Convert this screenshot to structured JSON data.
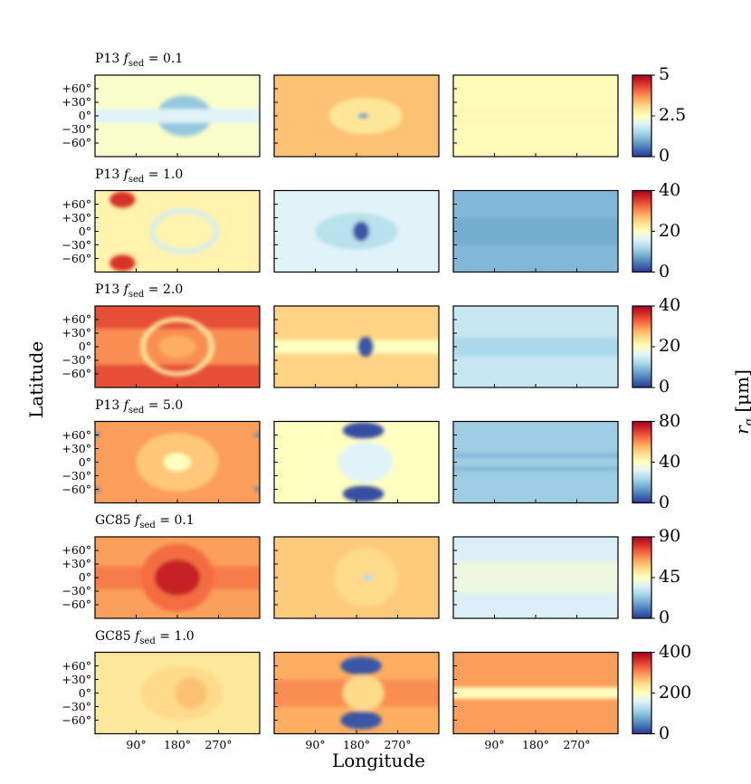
{
  "chart_data": {
    "type": "heatmap",
    "xlabel": "Longitude",
    "ylabel": "Latitude",
    "colorbar_label_base": "r",
    "colorbar_label_sub": "g",
    "colorbar_label_unit": "[µm]",
    "x_ticks": [
      "90°",
      "180°",
      "270°"
    ],
    "y_ticks": [
      "+60°",
      "+30°",
      "0°",
      "−30°",
      "−60°"
    ],
    "x_tick_values": [
      90,
      180,
      270
    ],
    "y_tick_values": [
      60,
      30,
      0,
      -30,
      -60
    ],
    "xlim": [
      0,
      360
    ],
    "ylim": [
      -90,
      90
    ],
    "colormap": [
      "#313695",
      "#4575b4",
      "#74add1",
      "#abd9e9",
      "#e0f3f8",
      "#ffffbf",
      "#fee090",
      "#fdae61",
      "#f46d43",
      "#d73027",
      "#a50026"
    ],
    "rows": [
      {
        "model": "P13",
        "fsed": "0.1",
        "cbar_ticks": [
          "5",
          "2.5",
          "0"
        ],
        "cbar_range": [
          0,
          5
        ],
        "panels": [
          {
            "base": 2.4,
            "features": [
              {
                "type": "ellipse",
                "lon": 195,
                "lat": 0,
                "rlon": 60,
                "rlat": 45,
                "value": 1.3
              },
              {
                "type": "band",
                "lat": 0,
                "width": 30,
                "value": 2.0
              }
            ]
          },
          {
            "base": 3.3,
            "features": [
              {
                "type": "ellipse",
                "lon": 200,
                "lat": 0,
                "rlon": 80,
                "rlat": 40,
                "value": 2.9
              },
              {
                "type": "ellipse",
                "lon": 195,
                "lat": 0,
                "rlon": 12,
                "rlat": 6,
                "value": 0.9
              }
            ]
          },
          {
            "base": 2.55,
            "features": [
              {
                "type": "band",
                "lat": 10,
                "width": 5,
                "value": 2.75
              },
              {
                "type": "band",
                "lat": -10,
                "width": 5,
                "value": 2.75
              }
            ]
          }
        ]
      },
      {
        "model": "P13",
        "fsed": "1.0",
        "cbar_ticks": [
          "40",
          "20",
          "0"
        ],
        "cbar_range": [
          0,
          40
        ],
        "panels": [
          {
            "base": 21.5,
            "features": [
              {
                "type": "ellipse",
                "lon": 60,
                "lat": 70,
                "rlon": 28,
                "rlat": 18,
                "value": 36
              },
              {
                "type": "ellipse",
                "lon": 60,
                "lat": -70,
                "rlon": 28,
                "rlat": 18,
                "value": 36
              },
              {
                "type": "ring",
                "lon": 195,
                "lat": 0,
                "rlon": 70,
                "rlat": 45,
                "value": 15
              }
            ]
          },
          {
            "base": 16,
            "features": [
              {
                "type": "ellipse",
                "lon": 180,
                "lat": 0,
                "rlon": 90,
                "rlat": 40,
                "value": 13
              },
              {
                "type": "ellipse",
                "lon": 190,
                "lat": 0,
                "rlon": 18,
                "rlat": 22,
                "value": 2
              }
            ]
          },
          {
            "base": 9,
            "features": [
              {
                "type": "band",
                "lat": 0,
                "width": 60,
                "value": 8
              }
            ]
          }
        ]
      },
      {
        "model": "P13",
        "fsed": "2.0",
        "cbar_ticks": [
          "40",
          "20",
          "0"
        ],
        "cbar_range": [
          0,
          40
        ],
        "panels": [
          {
            "base": 34,
            "features": [
              {
                "type": "band",
                "lat": 0,
                "width": 80,
                "value": 30
              },
              {
                "type": "ring",
                "lon": 180,
                "lat": 0,
                "rlon": 75,
                "rlat": 60,
                "value": 23
              },
              {
                "type": "ellipse",
                "lon": 180,
                "lat": 0,
                "rlon": 40,
                "rlat": 25,
                "value": 28
              }
            ]
          },
          {
            "base": 25,
            "features": [
              {
                "type": "band",
                "lat": 0,
                "width": 30,
                "value": 20
              },
              {
                "type": "ellipse",
                "lon": 200,
                "lat": 0,
                "rlon": 18,
                "rlat": 22,
                "value": 2
              }
            ]
          },
          {
            "base": 14,
            "features": [
              {
                "type": "band",
                "lat": 0,
                "width": 40,
                "value": 12
              }
            ]
          }
        ]
      },
      {
        "model": "P13",
        "fsed": "5.0",
        "cbar_ticks": [
          "80",
          "40",
          "0"
        ],
        "cbar_range": [
          0,
          80
        ],
        "panels": [
          {
            "base": 58,
            "features": [
              {
                "type": "ellipse",
                "lon": 180,
                "lat": 0,
                "rlon": 90,
                "rlat": 65,
                "value": 52
              },
              {
                "type": "ellipse",
                "lon": 180,
                "lat": 0,
                "rlon": 30,
                "rlat": 20,
                "value": 40
              },
              {
                "type": "ellipse",
                "lon": 5,
                "lat": 60,
                "rlon": 8,
                "rlat": 4,
                "value": 10
              },
              {
                "type": "ellipse",
                "lon": 5,
                "lat": -60,
                "rlon": 8,
                "rlat": 4,
                "value": 10
              },
              {
                "type": "ellipse",
                "lon": 355,
                "lat": 60,
                "rlon": 8,
                "rlat": 4,
                "value": 10
              },
              {
                "type": "ellipse",
                "lon": 355,
                "lat": -60,
                "rlon": 8,
                "rlat": 4,
                "value": 10
              }
            ]
          },
          {
            "base": 40,
            "features": [
              {
                "type": "ellipse",
                "lon": 195,
                "lat": 70,
                "rlon": 45,
                "rlat": 18,
                "value": 3
              },
              {
                "type": "ellipse",
                "lon": 195,
                "lat": -70,
                "rlon": 45,
                "rlat": 18,
                "value": 3
              },
              {
                "type": "ellipse",
                "lon": 200,
                "lat": 0,
                "rlon": 60,
                "rlat": 45,
                "value": 32
              }
            ]
          },
          {
            "base": 22,
            "features": [
              {
                "type": "band",
                "lat": 15,
                "width": 10,
                "value": 18
              },
              {
                "type": "band",
                "lat": -15,
                "width": 10,
                "value": 18
              }
            ]
          }
        ]
      },
      {
        "model": "GC85",
        "fsed": "0.1",
        "cbar_ticks": [
          "90",
          "45",
          "0"
        ],
        "cbar_range": [
          0,
          90
        ],
        "panels": [
          {
            "base": 65,
            "features": [
              {
                "type": "band",
                "lat": 0,
                "width": 50,
                "value": 70
              },
              {
                "type": "ellipse",
                "lon": 180,
                "lat": 0,
                "rlon": 80,
                "rlat": 75,
                "value": 72
              },
              {
                "type": "ellipse",
                "lon": 180,
                "lat": 0,
                "rlon": 50,
                "rlat": 40,
                "value": 84
              }
            ]
          },
          {
            "base": 58,
            "features": [
              {
                "type": "ellipse",
                "lon": 200,
                "lat": 0,
                "rlon": 70,
                "rlat": 65,
                "value": 55
              },
              {
                "type": "ellipse",
                "lon": 205,
                "lat": 0,
                "rlon": 12,
                "rlat": 6,
                "value": 28
              }
            ]
          },
          {
            "base": 35,
            "features": [
              {
                "type": "band",
                "lat": 0,
                "width": 70,
                "value": 40
              }
            ]
          }
        ]
      },
      {
        "model": "GC85",
        "fsed": "1.0",
        "cbar_ticks": [
          "400",
          "200",
          "0"
        ],
        "cbar_range": [
          0,
          400
        ],
        "panels": [
          {
            "base": 230,
            "features": [
              {
                "type": "ellipse",
                "lon": 190,
                "lat": 0,
                "rlon": 90,
                "rlat": 60,
                "value": 245
              },
              {
                "type": "ellipse",
                "lon": 210,
                "lat": 0,
                "rlon": 35,
                "rlat": 35,
                "value": 265
              }
            ]
          },
          {
            "base": 280,
            "features": [
              {
                "type": "band",
                "lat": 0,
                "width": 60,
                "value": 300
              },
              {
                "type": "ellipse",
                "lon": 195,
                "lat": 0,
                "rlon": 45,
                "rlat": 40,
                "value": 245
              },
              {
                "type": "ellipse",
                "lon": 190,
                "lat": 60,
                "rlon": 45,
                "rlat": 20,
                "value": 20
              },
              {
                "type": "ellipse",
                "lon": 190,
                "lat": -60,
                "rlon": 45,
                "rlat": 20,
                "value": 20
              }
            ]
          },
          {
            "base": 290,
            "features": [
              {
                "type": "band",
                "lat": 0,
                "width": 25,
                "value": 200
              }
            ]
          }
        ]
      }
    ]
  }
}
